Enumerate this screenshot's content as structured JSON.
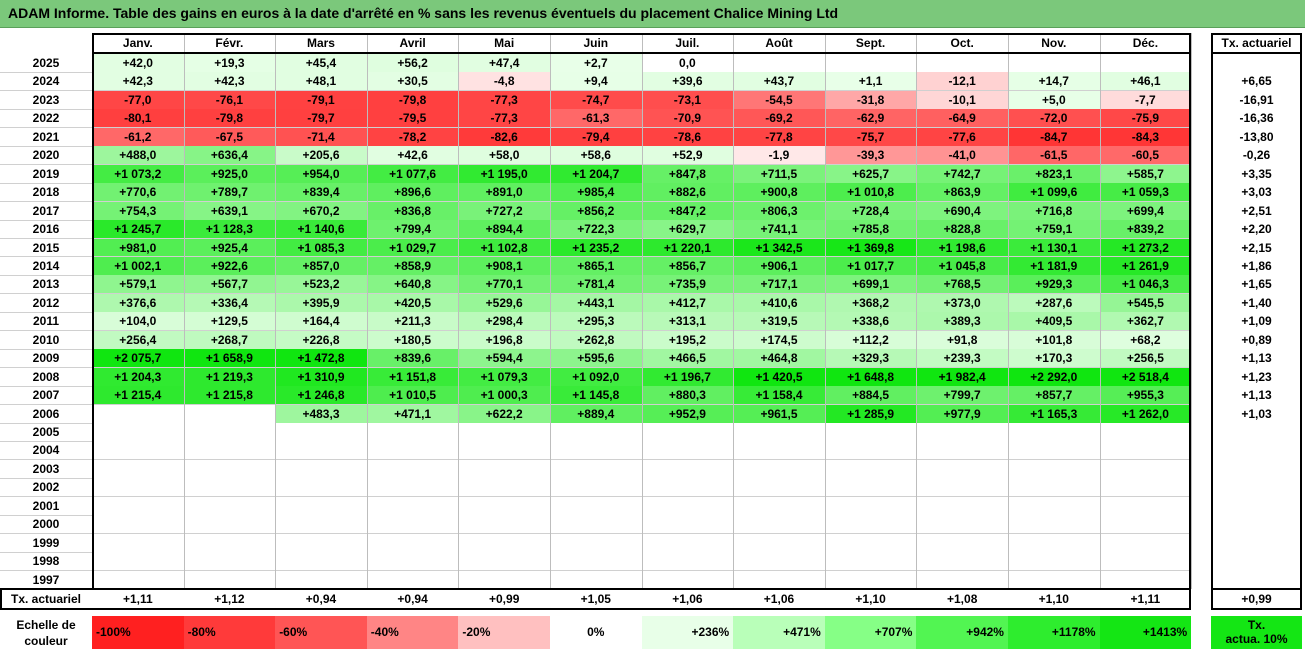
{
  "title": "ADAM Informe. Table des gains en euros à la date d'arrêté en % sans les revenus éventuels du placement Chalice Mining Ltd",
  "months": [
    "Janv.",
    "Févr.",
    "Mars",
    "Avril",
    "Mai",
    "Juin",
    "Juil.",
    "Août",
    "Sept.",
    "Oct.",
    "Nov.",
    "Déc."
  ],
  "tx_header": "Tx. actuariel",
  "footer_label": "Tx. actuariel",
  "footer_values": [
    "+1,11",
    "+1,12",
    "+0,94",
    "+0,94",
    "+0,99",
    "+1,05",
    "+1,06",
    "+1,06",
    "+1,10",
    "+1,08",
    "+1,10",
    "+1,11"
  ],
  "footer_total": "+0,99",
  "scale_label_1": "Echelle de",
  "scale_label_2": "couleur",
  "scale": [
    {
      "label": "-100%",
      "color": "#ff2020",
      "align": "left"
    },
    {
      "label": "-80%",
      "color": "#ff3a3a",
      "align": "left"
    },
    {
      "label": "-60%",
      "color": "#ff5555",
      "align": "left"
    },
    {
      "label": "-40%",
      "color": "#ff8585",
      "align": "left"
    },
    {
      "label": "-20%",
      "color": "#ffc0c0",
      "align": "left"
    },
    {
      "label": "0%",
      "color": "#ffffff",
      "align": "center"
    },
    {
      "label": "+236%",
      "color": "#e8ffe8",
      "align": "right"
    },
    {
      "label": "+471%",
      "color": "#b9ffb9",
      "align": "right"
    },
    {
      "label": "+707%",
      "color": "#86ff86",
      "align": "right"
    },
    {
      "label": "+942%",
      "color": "#52f552",
      "align": "right"
    },
    {
      "label": "+1178%",
      "color": "#2eed2e",
      "align": "right"
    },
    {
      "label": "+1413%",
      "color": "#14e614",
      "align": "right"
    }
  ],
  "scale_tx_1": "Tx.",
  "scale_tx_2": "actua. 10%",
  "chart_data": {
    "type": "heatmap",
    "title": "ADAM Informe. Table des gains en euros à la date d'arrêté en % sans les revenus éventuels du placement Chalice Mining Ltd",
    "x": [
      "Janv.",
      "Févr.",
      "Mars",
      "Avril",
      "Mai",
      "Juin",
      "Juil.",
      "Août",
      "Sept.",
      "Oct.",
      "Nov.",
      "Déc."
    ],
    "rows": [
      {
        "year": "2025",
        "values": [
          "+42,0",
          "+19,3",
          "+45,4",
          "+56,2",
          "+47,4",
          "+2,7",
          "0,0",
          "",
          "",
          "",
          "",
          ""
        ],
        "tx": ""
      },
      {
        "year": "2024",
        "values": [
          "+42,3",
          "+42,3",
          "+48,1",
          "+30,5",
          "-4,8",
          "+9,4",
          "+39,6",
          "+43,7",
          "+1,1",
          "-12,1",
          "+14,7",
          "+46,1"
        ],
        "tx": "+6,65"
      },
      {
        "year": "2023",
        "values": [
          "-77,0",
          "-76,1",
          "-79,1",
          "-79,8",
          "-77,3",
          "-74,7",
          "-73,1",
          "-54,5",
          "-31,8",
          "-10,1",
          "+5,0",
          "-7,7"
        ],
        "tx": "-16,91"
      },
      {
        "year": "2022",
        "values": [
          "-80,1",
          "-79,8",
          "-79,7",
          "-79,5",
          "-77,3",
          "-61,3",
          "-70,9",
          "-69,2",
          "-62,9",
          "-64,9",
          "-72,0",
          "-75,9"
        ],
        "tx": "-16,36"
      },
      {
        "year": "2021",
        "values": [
          "-61,2",
          "-67,5",
          "-71,4",
          "-78,2",
          "-82,6",
          "-79,4",
          "-78,6",
          "-77,8",
          "-75,7",
          "-77,6",
          "-84,7",
          "-84,3"
        ],
        "tx": "-13,80"
      },
      {
        "year": "2020",
        "values": [
          "+488,0",
          "+636,4",
          "+205,6",
          "+42,6",
          "+58,0",
          "+58,6",
          "+52,9",
          "-1,9",
          "-39,3",
          "-41,0",
          "-61,5",
          "-60,5"
        ],
        "tx": "-0,26"
      },
      {
        "year": "2019",
        "values": [
          "+1 073,2",
          "+925,0",
          "+954,0",
          "+1 077,6",
          "+1 195,0",
          "+1 204,7",
          "+847,8",
          "+711,5",
          "+625,7",
          "+742,7",
          "+823,1",
          "+585,7"
        ],
        "tx": "+3,35"
      },
      {
        "year": "2018",
        "values": [
          "+770,6",
          "+789,7",
          "+839,4",
          "+896,6",
          "+891,0",
          "+985,4",
          "+882,6",
          "+900,8",
          "+1 010,8",
          "+863,9",
          "+1 099,6",
          "+1 059,3"
        ],
        "tx": "+3,03"
      },
      {
        "year": "2017",
        "values": [
          "+754,3",
          "+639,1",
          "+670,2",
          "+836,8",
          "+727,2",
          "+856,2",
          "+847,2",
          "+806,3",
          "+728,4",
          "+690,4",
          "+716,8",
          "+699,4"
        ],
        "tx": "+2,51"
      },
      {
        "year": "2016",
        "values": [
          "+1 245,7",
          "+1 128,3",
          "+1 140,6",
          "+799,4",
          "+894,4",
          "+722,3",
          "+629,7",
          "+741,1",
          "+785,8",
          "+828,8",
          "+759,1",
          "+839,2"
        ],
        "tx": "+2,20"
      },
      {
        "year": "2015",
        "values": [
          "+981,0",
          "+925,4",
          "+1 085,3",
          "+1 029,7",
          "+1 102,8",
          "+1 235,2",
          "+1 220,1",
          "+1 342,5",
          "+1 369,8",
          "+1 198,6",
          "+1 130,1",
          "+1 273,2"
        ],
        "tx": "+2,15"
      },
      {
        "year": "2014",
        "values": [
          "+1 002,1",
          "+922,6",
          "+857,0",
          "+858,9",
          "+908,1",
          "+865,1",
          "+856,7",
          "+906,1",
          "+1 017,7",
          "+1 045,8",
          "+1 181,9",
          "+1 261,9"
        ],
        "tx": "+1,86"
      },
      {
        "year": "2013",
        "values": [
          "+579,1",
          "+567,7",
          "+523,2",
          "+640,8",
          "+770,1",
          "+781,4",
          "+735,9",
          "+717,1",
          "+699,1",
          "+768,5",
          "+929,3",
          "+1 046,3"
        ],
        "tx": "+1,65"
      },
      {
        "year": "2012",
        "values": [
          "+376,6",
          "+336,4",
          "+395,9",
          "+420,5",
          "+529,6",
          "+443,1",
          "+412,7",
          "+410,6",
          "+368,2",
          "+373,0",
          "+287,6",
          "+545,5"
        ],
        "tx": "+1,40"
      },
      {
        "year": "2011",
        "values": [
          "+104,0",
          "+129,5",
          "+164,4",
          "+211,3",
          "+298,4",
          "+295,3",
          "+313,1",
          "+319,5",
          "+338,6",
          "+389,3",
          "+409,5",
          "+362,7"
        ],
        "tx": "+1,09"
      },
      {
        "year": "2010",
        "values": [
          "+256,4",
          "+268,7",
          "+226,8",
          "+180,5",
          "+196,8",
          "+262,8",
          "+195,2",
          "+174,5",
          "+112,2",
          "+91,8",
          "+101,8",
          "+68,2"
        ],
        "tx": "+0,89"
      },
      {
        "year": "2009",
        "values": [
          "+2 075,7",
          "+1 658,9",
          "+1 472,8",
          "+839,6",
          "+594,4",
          "+595,6",
          "+466,5",
          "+464,8",
          "+329,3",
          "+239,3",
          "+170,3",
          "+256,5"
        ],
        "tx": "+1,13"
      },
      {
        "year": "2008",
        "values": [
          "+1 204,3",
          "+1 219,3",
          "+1 310,9",
          "+1 151,8",
          "+1 079,3",
          "+1 092,0",
          "+1 196,7",
          "+1 420,5",
          "+1 648,8",
          "+1 982,4",
          "+2 292,0",
          "+2 518,4"
        ],
        "tx": "+1,23"
      },
      {
        "year": "2007",
        "values": [
          "+1 215,4",
          "+1 215,8",
          "+1 246,8",
          "+1 010,5",
          "+1 000,3",
          "+1 145,8",
          "+880,3",
          "+1 158,4",
          "+884,5",
          "+799,7",
          "+857,7",
          "+955,3"
        ],
        "tx": "+1,13"
      },
      {
        "year": "2006",
        "values": [
          "",
          "",
          "+483,3",
          "+471,1",
          "+622,2",
          "+889,4",
          "+952,9",
          "+961,5",
          "+1 285,9",
          "+977,9",
          "+1 165,3",
          "+1 262,0"
        ],
        "tx": "+1,03"
      },
      {
        "year": "2005",
        "values": [
          "",
          "",
          "",
          "",
          "",
          "",
          "",
          "",
          "",
          "",
          "",
          ""
        ],
        "tx": ""
      },
      {
        "year": "2004",
        "values": [
          "",
          "",
          "",
          "",
          "",
          "",
          "",
          "",
          "",
          "",
          "",
          ""
        ],
        "tx": ""
      },
      {
        "year": "2003",
        "values": [
          "",
          "",
          "",
          "",
          "",
          "",
          "",
          "",
          "",
          "",
          "",
          ""
        ],
        "tx": ""
      },
      {
        "year": "2002",
        "values": [
          "",
          "",
          "",
          "",
          "",
          "",
          "",
          "",
          "",
          "",
          "",
          ""
        ],
        "tx": ""
      },
      {
        "year": "2001",
        "values": [
          "",
          "",
          "",
          "",
          "",
          "",
          "",
          "",
          "",
          "",
          "",
          ""
        ],
        "tx": ""
      },
      {
        "year": "2000",
        "values": [
          "",
          "",
          "",
          "",
          "",
          "",
          "",
          "",
          "",
          "",
          "",
          ""
        ],
        "tx": ""
      },
      {
        "year": "1999",
        "values": [
          "",
          "",
          "",
          "",
          "",
          "",
          "",
          "",
          "",
          "",
          "",
          ""
        ],
        "tx": ""
      },
      {
        "year": "1998",
        "values": [
          "",
          "",
          "",
          "",
          "",
          "",
          "",
          "",
          "",
          "",
          "",
          ""
        ],
        "tx": ""
      },
      {
        "year": "1997",
        "values": [
          "",
          "",
          "",
          "",
          "",
          "",
          "",
          "",
          "",
          "",
          "",
          ""
        ],
        "tx": ""
      }
    ]
  }
}
